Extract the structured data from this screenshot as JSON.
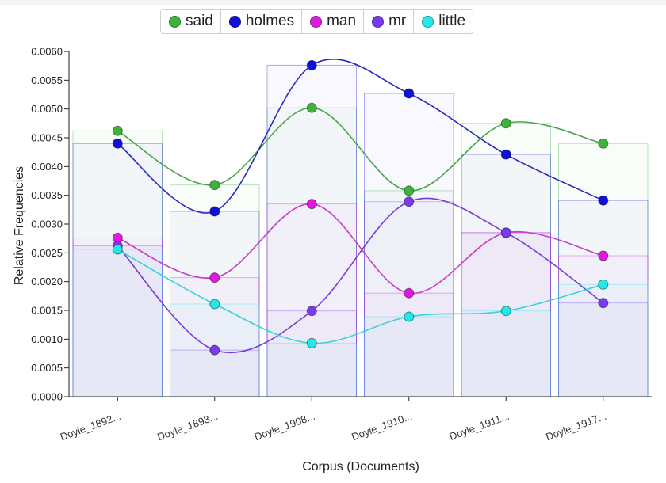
{
  "chart_data": {
    "type": "line",
    "title": "",
    "xlabel": "Corpus (Documents)",
    "ylabel": "Relative Frequencies",
    "ylim": [
      0,
      0.006
    ],
    "y_ticks": [
      "0.0000",
      "0.0005",
      "0.0010",
      "0.0015",
      "0.0020",
      "0.0025",
      "0.0030",
      "0.0035",
      "0.0040",
      "0.0045",
      "0.0050",
      "0.0055",
      "0.0060"
    ],
    "categories": [
      "Doyle_1892...",
      "Doyle_1893...",
      "Doyle_1908...",
      "Doyle_1910...",
      "Doyle_1911...",
      "Doyle_1917..."
    ],
    "legend_position": "top-center",
    "series": [
      {
        "name": "said",
        "color": "#3cb43c",
        "line_color": "#4aa44a",
        "values": [
          0.00462,
          0.00368,
          0.00502,
          0.00358,
          0.00475,
          0.0044
        ]
      },
      {
        "name": "holmes",
        "color": "#1010d8",
        "line_color": "#2a2ac0",
        "values": [
          0.0044,
          0.00322,
          0.00576,
          0.00527,
          0.00421,
          0.00341
        ]
      },
      {
        "name": "man",
        "color": "#e018e0",
        "line_color": "#c83cc8",
        "values": [
          0.00276,
          0.00207,
          0.00335,
          0.0018,
          0.00285,
          0.00245
        ]
      },
      {
        "name": "mr",
        "color": "#7a3af0",
        "line_color": "#7a3ad8",
        "values": [
          0.00262,
          0.00081,
          0.00149,
          0.00339,
          0.00285,
          0.00163
        ]
      },
      {
        "name": "little",
        "color": "#22e8e8",
        "line_color": "#3cd0d8",
        "values": [
          0.00256,
          0.00161,
          0.00093,
          0.00139,
          0.00149,
          0.00195
        ]
      }
    ]
  }
}
